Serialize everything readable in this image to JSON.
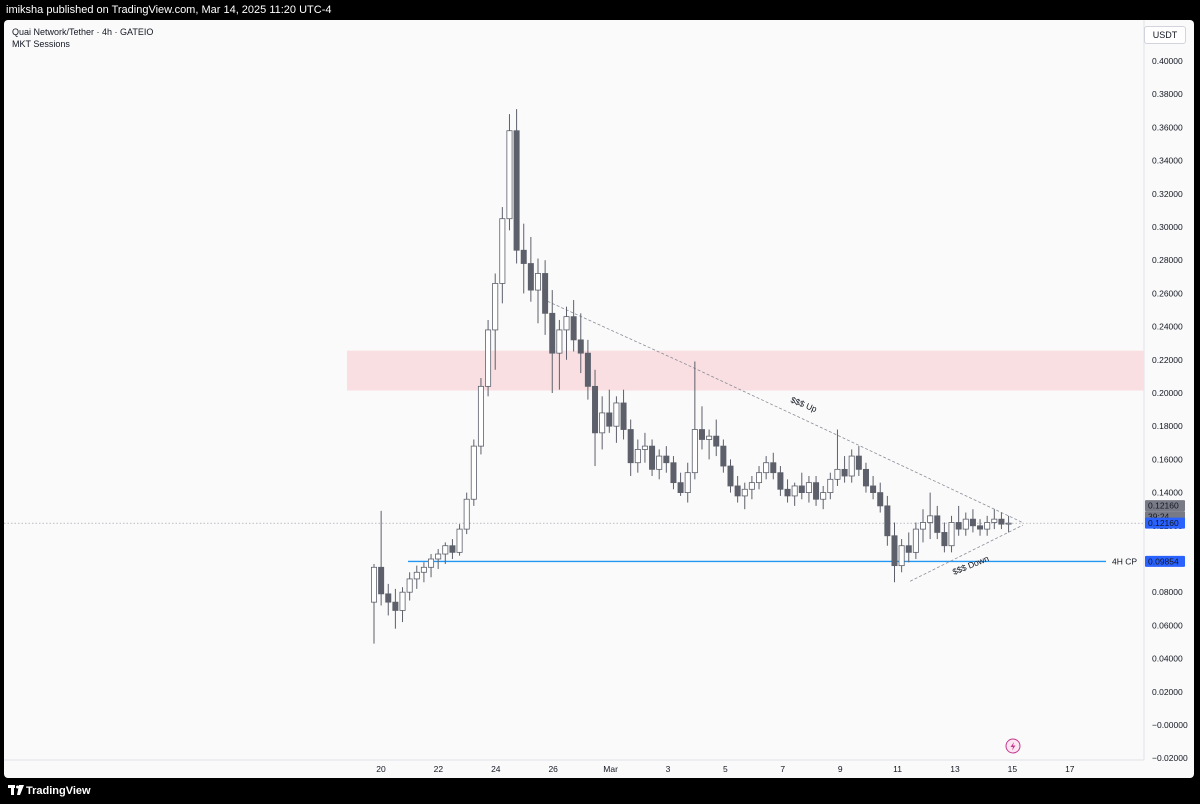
{
  "header": {
    "publish_line": "imiksha published on TradingView.com, Mar 14, 2025 11:20 UTC-4"
  },
  "legend": {
    "symbol_line": "Quai Network/Tether · 4h · GATEIO",
    "indicator": "MKT Sessions"
  },
  "currency_label": "USDT",
  "footer": {
    "brand": "TradingView"
  },
  "colors": {
    "chart_bg": "#fafafa",
    "candle_up_fill": "#ffffff",
    "candle_down_fill": "#5d606b",
    "candle_outline": "#5d606b",
    "zone_fill": "#f9dfe1",
    "level_line": "#2196f3",
    "price_label": "#2962ff"
  },
  "annotations": {
    "upper_trendline": "$$$ Up",
    "lower_trendline": "$$$ Down",
    "level_label": "4H CP",
    "level_value": "0.09854",
    "last_price_top": "0.12160",
    "countdown": "39:24",
    "last_price": "0.12160",
    "alert_icon": "lightning-icon"
  },
  "chart_data": {
    "type": "candlestick",
    "title": "Quai Network/Tether · 4h · GATEIO",
    "ylim": [
      -0.02,
      0.41
    ],
    "y_ticks": [
      "0.40000",
      "0.38000",
      "0.36000",
      "0.34000",
      "0.32000",
      "0.30000",
      "0.28000",
      "0.26000",
      "0.24000",
      "0.22000",
      "0.20000",
      "0.18000",
      "0.16000",
      "0.14000",
      "0.12000",
      "0.10000",
      "0.08000",
      "0.06000",
      "0.04000",
      "0.02000",
      "−0.00000",
      "−0.02000"
    ],
    "x_ticks": [
      "20",
      "22",
      "24",
      "26",
      "Mar",
      "3",
      "5",
      "7",
      "9",
      "11",
      "13",
      "15",
      "17"
    ],
    "supply_zone": [
      0.2015,
      0.2255
    ],
    "level_4h_cp": 0.09854,
    "last_price": 0.1216,
    "trendline_upper": [
      [
        0.2565,
        0.2188
      ],
      [
        0.1786,
        0.1219
      ]
    ],
    "trendline_lower": [
      [
        0.0866,
        0.1204
      ]
    ],
    "ohlc": [
      [
        0.074,
        0.097,
        0.049,
        0.095
      ],
      [
        0.095,
        0.129,
        0.072,
        0.079
      ],
      [
        0.079,
        0.085,
        0.066,
        0.074
      ],
      [
        0.074,
        0.082,
        0.058,
        0.069
      ],
      [
        0.069,
        0.083,
        0.062,
        0.08
      ],
      [
        0.08,
        0.092,
        0.075,
        0.088
      ],
      [
        0.088,
        0.096,
        0.082,
        0.092
      ],
      [
        0.092,
        0.098,
        0.086,
        0.095
      ],
      [
        0.095,
        0.103,
        0.089,
        0.1
      ],
      [
        0.1,
        0.106,
        0.094,
        0.103
      ],
      [
        0.103,
        0.11,
        0.097,
        0.108
      ],
      [
        0.108,
        0.112,
        0.1,
        0.104
      ],
      [
        0.104,
        0.121,
        0.102,
        0.118
      ],
      [
        0.118,
        0.14,
        0.115,
        0.136
      ],
      [
        0.136,
        0.172,
        0.132,
        0.168
      ],
      [
        0.168,
        0.209,
        0.163,
        0.204
      ],
      [
        0.204,
        0.244,
        0.198,
        0.238
      ],
      [
        0.238,
        0.272,
        0.214,
        0.266
      ],
      [
        0.266,
        0.312,
        0.254,
        0.305
      ],
      [
        0.305,
        0.368,
        0.298,
        0.358
      ],
      [
        0.358,
        0.371,
        0.278,
        0.286
      ],
      [
        0.286,
        0.302,
        0.26,
        0.278
      ],
      [
        0.278,
        0.294,
        0.255,
        0.262
      ],
      [
        0.262,
        0.281,
        0.242,
        0.272
      ],
      [
        0.272,
        0.28,
        0.235,
        0.248
      ],
      [
        0.248,
        0.262,
        0.2,
        0.224
      ],
      [
        0.224,
        0.244,
        0.202,
        0.238
      ],
      [
        0.238,
        0.252,
        0.22,
        0.246
      ],
      [
        0.246,
        0.256,
        0.225,
        0.232
      ],
      [
        0.232,
        0.248,
        0.212,
        0.224
      ],
      [
        0.224,
        0.232,
        0.196,
        0.204
      ],
      [
        0.204,
        0.214,
        0.156,
        0.176
      ],
      [
        0.176,
        0.198,
        0.166,
        0.188
      ],
      [
        0.188,
        0.202,
        0.176,
        0.18
      ],
      [
        0.18,
        0.198,
        0.17,
        0.194
      ],
      [
        0.194,
        0.202,
        0.172,
        0.178
      ],
      [
        0.178,
        0.184,
        0.15,
        0.158
      ],
      [
        0.158,
        0.172,
        0.152,
        0.166
      ],
      [
        0.166,
        0.176,
        0.158,
        0.168
      ],
      [
        0.168,
        0.172,
        0.15,
        0.154
      ],
      [
        0.154,
        0.166,
        0.148,
        0.162
      ],
      [
        0.162,
        0.168,
        0.152,
        0.158
      ],
      [
        0.158,
        0.162,
        0.142,
        0.146
      ],
      [
        0.146,
        0.152,
        0.138,
        0.14
      ],
      [
        0.14,
        0.158,
        0.134,
        0.152
      ],
      [
        0.152,
        0.219,
        0.148,
        0.178
      ],
      [
        0.178,
        0.192,
        0.166,
        0.172
      ],
      [
        0.172,
        0.178,
        0.16,
        0.174
      ],
      [
        0.174,
        0.184,
        0.162,
        0.168
      ],
      [
        0.168,
        0.172,
        0.152,
        0.156
      ],
      [
        0.156,
        0.16,
        0.14,
        0.144
      ],
      [
        0.144,
        0.15,
        0.134,
        0.138
      ],
      [
        0.138,
        0.146,
        0.13,
        0.142
      ],
      [
        0.142,
        0.15,
        0.136,
        0.146
      ],
      [
        0.146,
        0.156,
        0.142,
        0.152
      ],
      [
        0.152,
        0.162,
        0.148,
        0.158
      ],
      [
        0.158,
        0.164,
        0.148,
        0.152
      ],
      [
        0.152,
        0.156,
        0.138,
        0.142
      ],
      [
        0.142,
        0.148,
        0.134,
        0.138
      ],
      [
        0.138,
        0.146,
        0.132,
        0.144
      ],
      [
        0.144,
        0.152,
        0.136,
        0.14
      ],
      [
        0.14,
        0.15,
        0.134,
        0.146
      ],
      [
        0.146,
        0.15,
        0.132,
        0.136
      ],
      [
        0.136,
        0.144,
        0.13,
        0.14
      ],
      [
        0.14,
        0.152,
        0.136,
        0.148
      ],
      [
        0.148,
        0.178,
        0.144,
        0.154
      ],
      [
        0.154,
        0.162,
        0.146,
        0.15
      ],
      [
        0.15,
        0.166,
        0.146,
        0.162
      ],
      [
        0.162,
        0.168,
        0.15,
        0.154
      ],
      [
        0.154,
        0.158,
        0.14,
        0.144
      ],
      [
        0.144,
        0.15,
        0.136,
        0.14
      ],
      [
        0.14,
        0.146,
        0.128,
        0.132
      ],
      [
        0.132,
        0.138,
        0.108,
        0.114
      ],
      [
        0.114,
        0.122,
        0.086,
        0.096
      ],
      [
        0.096,
        0.112,
        0.092,
        0.108
      ],
      [
        0.108,
        0.116,
        0.098,
        0.104
      ],
      [
        0.104,
        0.122,
        0.1,
        0.118
      ],
      [
        0.118,
        0.13,
        0.11,
        0.122
      ],
      [
        0.122,
        0.14,
        0.112,
        0.126
      ],
      [
        0.126,
        0.132,
        0.112,
        0.116
      ],
      [
        0.116,
        0.122,
        0.104,
        0.108
      ],
      [
        0.108,
        0.126,
        0.104,
        0.122
      ],
      [
        0.122,
        0.132,
        0.114,
        0.118
      ],
      [
        0.118,
        0.128,
        0.114,
        0.124
      ],
      [
        0.124,
        0.13,
        0.116,
        0.12
      ],
      [
        0.12,
        0.124,
        0.114,
        0.118
      ],
      [
        0.118,
        0.126,
        0.114,
        0.122
      ],
      [
        0.122,
        0.13,
        0.118,
        0.124
      ],
      [
        0.124,
        0.128,
        0.118,
        0.121
      ],
      [
        0.121,
        0.126,
        0.116,
        0.1216
      ]
    ]
  }
}
